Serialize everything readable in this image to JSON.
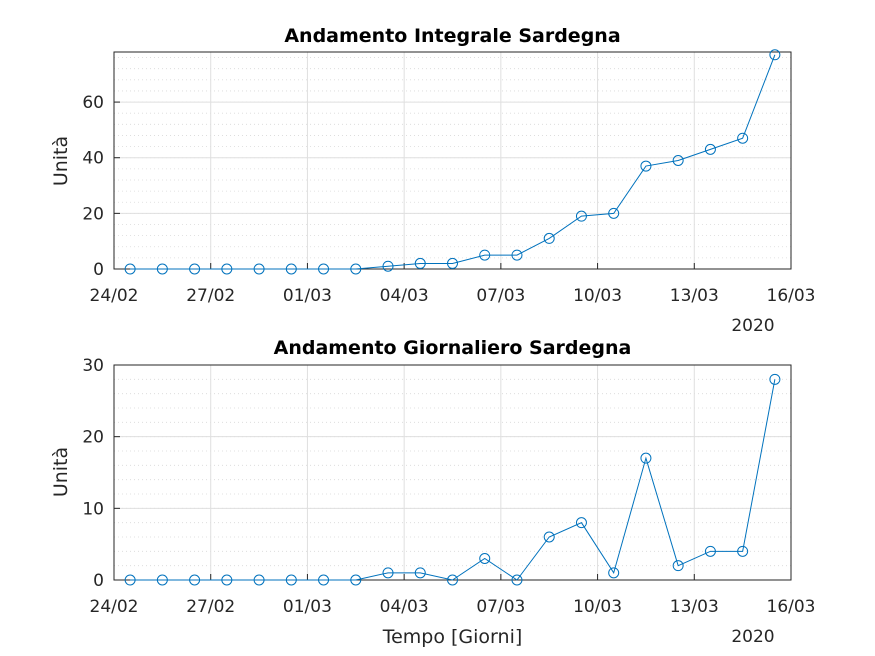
{
  "chart_data": [
    {
      "type": "line",
      "title": "Andamento Integrale Sardegna",
      "xlabel": "",
      "ylabel": "Unità",
      "x": [
        "2020-02-24",
        "2020-02-25",
        "2020-02-26",
        "2020-02-27",
        "2020-02-28",
        "2020-02-29",
        "2020-03-01",
        "2020-03-02",
        "2020-03-03",
        "2020-03-04",
        "2020-03-05",
        "2020-03-06",
        "2020-03-07",
        "2020-03-08",
        "2020-03-09",
        "2020-03-10",
        "2020-03-11",
        "2020-03-12",
        "2020-03-13",
        "2020-03-14",
        "2020-03-15",
        "2020-03-16"
      ],
      "series": [
        {
          "values": [
            0,
            0,
            0,
            0,
            0,
            0,
            0,
            0,
            1,
            2,
            2,
            5,
            5,
            11,
            19,
            20,
            37,
            39,
            43,
            47,
            77,
            null
          ]
        }
      ],
      "xlim": [
        "2020-02-24",
        "2020-03-16"
      ],
      "ylim": [
        0,
        78
      ],
      "xticks": [
        "24/02",
        "27/02",
        "01/03",
        "04/03",
        "07/03",
        "10/03",
        "13/03",
        "16/03"
      ],
      "yticks": [
        0,
        20,
        40,
        60
      ],
      "year_label": "2020",
      "grid": true,
      "minor_grid": true,
      "color": "#0072BD",
      "marker": "circle"
    },
    {
      "type": "line",
      "title": "Andamento Giornaliero Sardegna",
      "xlabel": "Tempo [Giorni]",
      "ylabel": "Unità",
      "x": [
        "2020-02-24",
        "2020-02-25",
        "2020-02-26",
        "2020-02-27",
        "2020-02-28",
        "2020-02-29",
        "2020-03-01",
        "2020-03-02",
        "2020-03-03",
        "2020-03-04",
        "2020-03-05",
        "2020-03-06",
        "2020-03-07",
        "2020-03-08",
        "2020-03-09",
        "2020-03-10",
        "2020-03-11",
        "2020-03-12",
        "2020-03-13",
        "2020-03-14",
        "2020-03-15",
        "2020-03-16"
      ],
      "series": [
        {
          "values": [
            0,
            0,
            0,
            0,
            0,
            0,
            0,
            0,
            1,
            1,
            0,
            3,
            0,
            6,
            8,
            1,
            17,
            2,
            4,
            4,
            28,
            null
          ]
        }
      ],
      "xlim": [
        "2020-02-24",
        "2020-03-16"
      ],
      "ylim": [
        0,
        30
      ],
      "xticks": [
        "24/02",
        "27/02",
        "01/03",
        "04/03",
        "07/03",
        "10/03",
        "13/03",
        "16/03"
      ],
      "yticks": [
        0,
        10,
        20,
        30
      ],
      "year_label": "2020",
      "grid": true,
      "minor_grid": true,
      "color": "#0072BD",
      "marker": "circle"
    }
  ]
}
